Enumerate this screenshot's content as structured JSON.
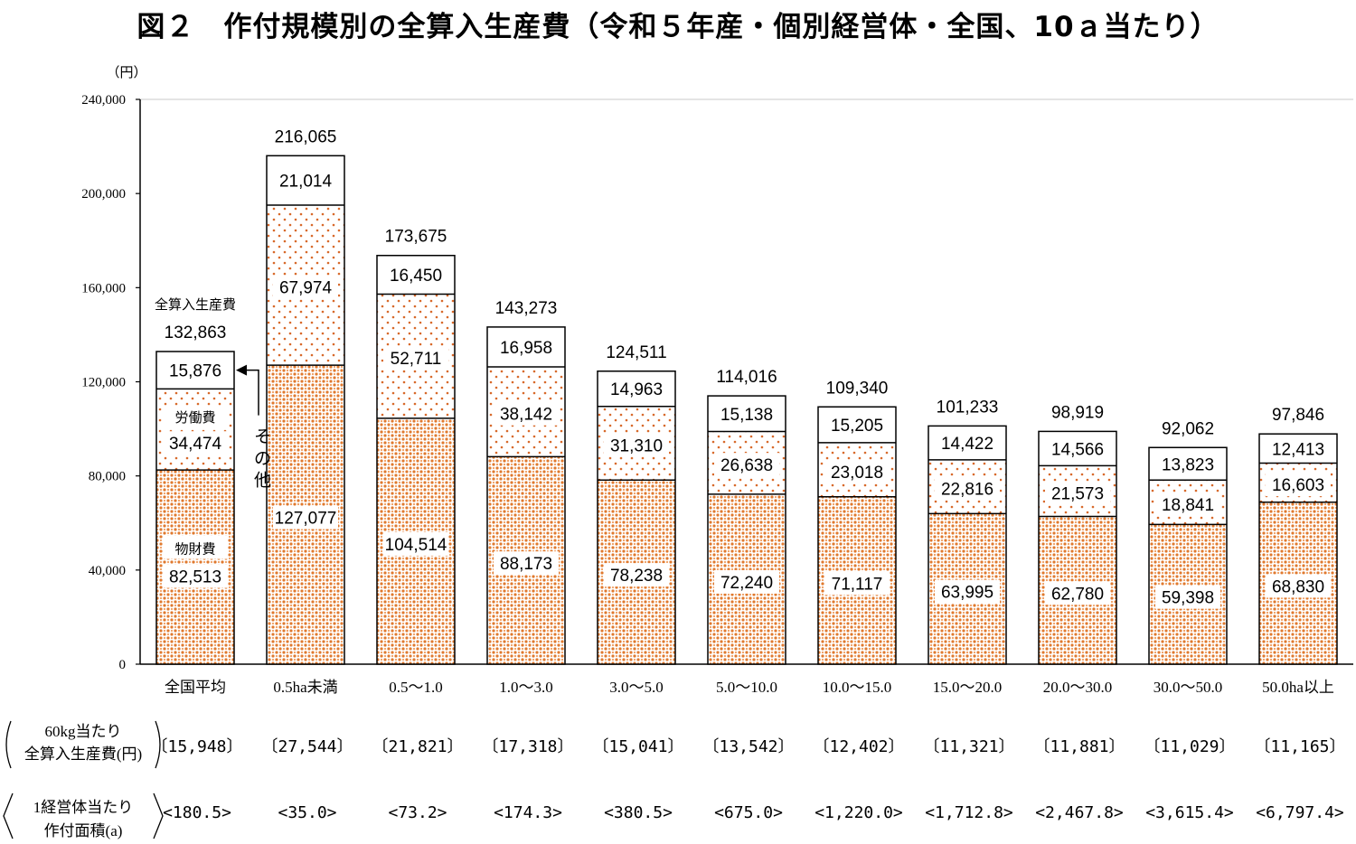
{
  "title": "図２　作付規模別の全算入生産費（令和５年産・個別経営体・全国、10ａ当たり）",
  "chart_data": {
    "type": "bar",
    "stacked": true,
    "yunit": "（円）",
    "ylim": [
      0,
      240000
    ],
    "yticks": [
      "0",
      "40,000",
      "80,000",
      "120,000",
      "160,000",
      "200,000",
      "240,000"
    ],
    "categories": [
      "全国平均",
      "0.5ha未満",
      "0.5～1.0",
      "1.0～3.0",
      "3.0～5.0",
      "5.0～10.0",
      "10.0～15.0",
      "15.0～20.0",
      "20.0～30.0",
      "30.0～50.0",
      "50.0ha以上"
    ],
    "series": [
      {
        "name": "物財費",
        "values": [
          82513,
          127077,
          104514,
          88173,
          78238,
          72240,
          71117,
          63995,
          62780,
          59398,
          68830
        ],
        "labels": [
          "82,513",
          "127,077",
          "104,514",
          "88,173",
          "78,238",
          "72,240",
          "71,117",
          "63,995",
          "62,780",
          "59,398",
          "68,830"
        ]
      },
      {
        "name": "労働費",
        "values": [
          34474,
          67974,
          52711,
          38142,
          31310,
          26638,
          23018,
          22816,
          21573,
          18841,
          16603
        ],
        "labels": [
          "34,474",
          "67,974",
          "52,711",
          "38,142",
          "31,310",
          "26,638",
          "23,018",
          "22,816",
          "21,573",
          "18,841",
          "16,603"
        ]
      },
      {
        "name": "その他",
        "values": [
          15876,
          21014,
          16450,
          16958,
          14963,
          15138,
          15205,
          14422,
          14566,
          13823,
          12413
        ],
        "labels": [
          "15,876",
          "21,014",
          "16,450",
          "16,958",
          "14,963",
          "15,138",
          "15,205",
          "14,422",
          "14,566",
          "13,823",
          "12,413"
        ]
      }
    ],
    "totals": [
      132863,
      216065,
      173675,
      143273,
      124511,
      114016,
      109340,
      101233,
      98919,
      92062,
      97846
    ],
    "total_labels": [
      "132,863",
      "216,065",
      "173,675",
      "143,273",
      "124,511",
      "114,016",
      "109,340",
      "101,233",
      "98,919",
      "92,062",
      "97,846"
    ],
    "total_name": "全算入生産費",
    "colors": {
      "material": "#e0792e",
      "labor": "#d8692a",
      "other": "#ffffff",
      "outline": "#000000"
    }
  },
  "rows": [
    {
      "label": [
        "60kg当たり",
        "全算入生産費(円)"
      ],
      "values": [
        "〔15,948〕",
        "〔27,544〕",
        "〔21,821〕",
        "〔17,318〕",
        "〔15,041〕",
        "〔13,542〕",
        "〔12,402〕",
        "〔11,321〕",
        "〔11,881〕",
        "〔11,029〕",
        "〔11,165〕"
      ]
    },
    {
      "label": [
        "1経営体当たり",
        "作付面積(a)"
      ],
      "values": [
        "<180.5>",
        "<35.0>",
        "<73.2>",
        "<174.3>",
        "<380.5>",
        "<675.0>",
        "<1,220.0>",
        "<1,712.8>",
        "<2,467.8>",
        "<3,615.4>",
        "<6,797.4>"
      ]
    }
  ]
}
